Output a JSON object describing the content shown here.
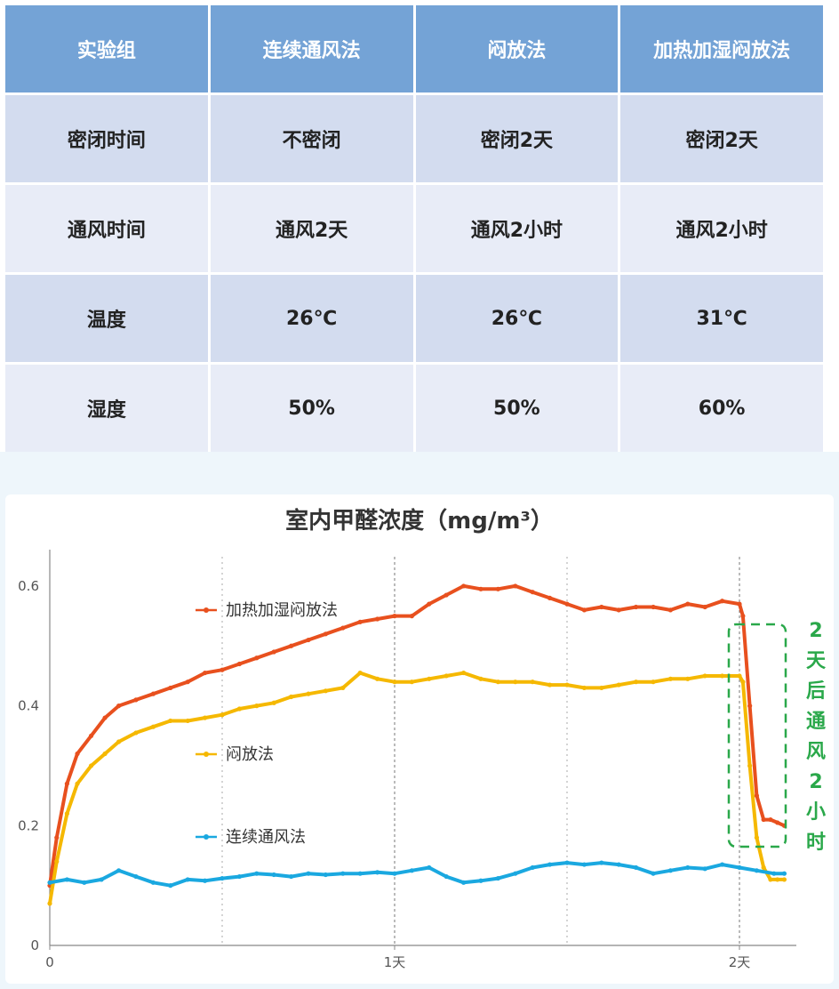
{
  "table": {
    "headers": [
      "实验组",
      "连续通风法",
      "闷放法",
      "加热加湿闷放法"
    ],
    "rows": [
      [
        "密闭时间",
        "不密闭",
        "密闭2天",
        "密闭2天"
      ],
      [
        "通风时间",
        "通风2天",
        "通风2小时",
        "通风2小时"
      ],
      [
        "温度",
        "26℃",
        "26℃",
        "31℃"
      ],
      [
        "湿度",
        "50%",
        "50%",
        "60%"
      ]
    ],
    "header_color": "#74a3d6"
  },
  "chart_data": {
    "type": "line",
    "title": "室内甲醛浓度（mg/m³）",
    "xlabel": "",
    "ylabel": "",
    "x_ticks": [
      {
        "x": 0,
        "label": "0"
      },
      {
        "x": 1,
        "label": "1天"
      },
      {
        "x": 2,
        "label": "2天"
      }
    ],
    "y_ticks": [
      {
        "y": 0,
        "label": "0"
      },
      {
        "y": 0.2,
        "label": "0.2"
      },
      {
        "y": 0.4,
        "label": "0.4"
      },
      {
        "y": 0.6,
        "label": "0.6"
      }
    ],
    "xlim": [
      0,
      2.25
    ],
    "ylim": [
      0,
      0.64
    ],
    "grid": "dotted vertical lines at 0.5, 1, 1.5, 2 days",
    "series": [
      {
        "name": "加热加湿闷放法",
        "color": "#e8501e",
        "x": [
          0,
          0.02,
          0.05,
          0.08,
          0.12,
          0.16,
          0.2,
          0.25,
          0.3,
          0.35,
          0.4,
          0.45,
          0.5,
          0.55,
          0.6,
          0.65,
          0.7,
          0.75,
          0.8,
          0.85,
          0.9,
          0.95,
          1.0,
          1.05,
          1.1,
          1.15,
          1.2,
          1.25,
          1.3,
          1.35,
          1.4,
          1.45,
          1.5,
          1.55,
          1.6,
          1.65,
          1.7,
          1.75,
          1.8,
          1.85,
          1.9,
          1.95,
          2.0,
          2.01,
          2.03,
          2.05,
          2.07,
          2.09,
          2.11,
          2.13
        ],
        "y": [
          0.1,
          0.18,
          0.27,
          0.32,
          0.35,
          0.38,
          0.4,
          0.41,
          0.42,
          0.43,
          0.44,
          0.455,
          0.46,
          0.47,
          0.48,
          0.49,
          0.5,
          0.51,
          0.52,
          0.53,
          0.54,
          0.545,
          0.55,
          0.55,
          0.57,
          0.585,
          0.6,
          0.595,
          0.595,
          0.6,
          0.59,
          0.58,
          0.57,
          0.56,
          0.565,
          0.56,
          0.565,
          0.565,
          0.56,
          0.57,
          0.565,
          0.575,
          0.57,
          0.55,
          0.4,
          0.25,
          0.21,
          0.21,
          0.205,
          0.2
        ]
      },
      {
        "name": "闷放法",
        "color": "#f5b800",
        "x": [
          0,
          0.02,
          0.05,
          0.08,
          0.12,
          0.16,
          0.2,
          0.25,
          0.3,
          0.35,
          0.4,
          0.45,
          0.5,
          0.55,
          0.6,
          0.65,
          0.7,
          0.75,
          0.8,
          0.85,
          0.9,
          0.95,
          1.0,
          1.05,
          1.1,
          1.15,
          1.2,
          1.25,
          1.3,
          1.35,
          1.4,
          1.45,
          1.5,
          1.55,
          1.6,
          1.65,
          1.7,
          1.75,
          1.8,
          1.85,
          1.9,
          1.95,
          2.0,
          2.01,
          2.03,
          2.05,
          2.07,
          2.09,
          2.11,
          2.13
        ],
        "y": [
          0.07,
          0.14,
          0.22,
          0.27,
          0.3,
          0.32,
          0.34,
          0.355,
          0.365,
          0.375,
          0.375,
          0.38,
          0.385,
          0.395,
          0.4,
          0.405,
          0.415,
          0.42,
          0.425,
          0.43,
          0.455,
          0.445,
          0.44,
          0.44,
          0.445,
          0.45,
          0.455,
          0.445,
          0.44,
          0.44,
          0.44,
          0.435,
          0.435,
          0.43,
          0.43,
          0.435,
          0.44,
          0.44,
          0.445,
          0.445,
          0.45,
          0.45,
          0.45,
          0.44,
          0.3,
          0.18,
          0.13,
          0.11,
          0.11,
          0.11
        ]
      },
      {
        "name": "连续通风法",
        "color": "#1aa8e0",
        "x": [
          0,
          0.05,
          0.1,
          0.15,
          0.2,
          0.25,
          0.3,
          0.35,
          0.4,
          0.45,
          0.5,
          0.55,
          0.6,
          0.65,
          0.7,
          0.75,
          0.8,
          0.85,
          0.9,
          0.95,
          1.0,
          1.05,
          1.1,
          1.15,
          1.2,
          1.25,
          1.3,
          1.35,
          1.4,
          1.45,
          1.5,
          1.55,
          1.6,
          1.65,
          1.7,
          1.75,
          1.8,
          1.85,
          1.9,
          1.95,
          2.0,
          2.05,
          2.1,
          2.13
        ],
        "y": [
          0.105,
          0.11,
          0.105,
          0.11,
          0.125,
          0.115,
          0.105,
          0.1,
          0.11,
          0.108,
          0.112,
          0.115,
          0.12,
          0.118,
          0.115,
          0.12,
          0.118,
          0.12,
          0.12,
          0.122,
          0.12,
          0.125,
          0.13,
          0.115,
          0.105,
          0.108,
          0.112,
          0.12,
          0.13,
          0.135,
          0.138,
          0.135,
          0.138,
          0.135,
          0.13,
          0.12,
          0.125,
          0.13,
          0.128,
          0.135,
          0.13,
          0.125,
          0.12,
          0.12
        ]
      }
    ],
    "legend": [
      {
        "label": "加热加湿闷放法",
        "series": 0
      },
      {
        "label": "闷放法",
        "series": 1
      },
      {
        "label": "连续通风法",
        "series": 2
      }
    ],
    "annotation": {
      "text": [
        "2",
        "天",
        "后",
        "通",
        "风",
        "2",
        "小",
        "时"
      ],
      "color": "#2aa84a"
    }
  }
}
